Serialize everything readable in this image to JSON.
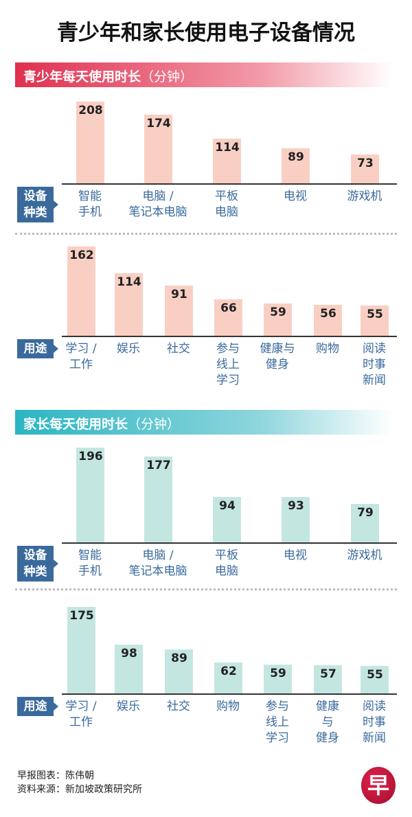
{
  "title": "青少年和家长使用电子设备情况",
  "colors": {
    "teen_header": "#e03050",
    "teen_bar": "#f9cfc4",
    "parent_header": "#2bb5c3",
    "parent_bar": "#c4e6e1",
    "tag": "#3a6a9c"
  },
  "sections": [
    {
      "header": "青少年每天使用时长",
      "unit": "（分钟）"
    },
    {
      "header": "家长每天使用时长",
      "unit": "（分钟）"
    }
  ],
  "tags": {
    "device": [
      "设备",
      "种类"
    ],
    "usage": [
      "用途"
    ]
  },
  "chart_data": [
    {
      "type": "bar",
      "title": "青少年每天使用时长（分钟）— 设备种类",
      "categories": [
        [
          "智能",
          "手机"
        ],
        [
          "电脑 /",
          "笔记本电脑"
        ],
        [
          "平板",
          "电脑"
        ],
        [
          "电视"
        ],
        [
          "游戏机"
        ]
      ],
      "values": [
        208,
        174,
        114,
        89,
        73
      ]
    },
    {
      "type": "bar",
      "title": "青少年每天使用时长（分钟）— 用途",
      "categories": [
        [
          "学习 /",
          "工作"
        ],
        [
          "娱乐"
        ],
        [
          "社交"
        ],
        [
          "参与",
          "线上",
          "学习"
        ],
        [
          "健康与",
          "健身"
        ],
        [
          "购物"
        ],
        [
          "阅读",
          "时事",
          "新闻"
        ]
      ],
      "values": [
        162,
        114,
        91,
        66,
        59,
        56,
        55
      ]
    },
    {
      "type": "bar",
      "title": "家长每天使用时长（分钟）— 设备种类",
      "categories": [
        [
          "智能",
          "手机"
        ],
        [
          "电脑 /",
          "笔记本电脑"
        ],
        [
          "平板",
          "电脑"
        ],
        [
          "电视"
        ],
        [
          "游戏机"
        ]
      ],
      "values": [
        196,
        177,
        94,
        93,
        79
      ]
    },
    {
      "type": "bar",
      "title": "家长每天使用时长（分钟）— 用途",
      "categories": [
        [
          "学习 /",
          "工作"
        ],
        [
          "娱乐"
        ],
        [
          "社交"
        ],
        [
          "购物"
        ],
        [
          "参与",
          "线上",
          "学习"
        ],
        [
          "健康",
          "与",
          "健身"
        ],
        [
          "阅读",
          "时事",
          "新闻"
        ]
      ],
      "values": [
        175,
        98,
        89,
        62,
        59,
        57,
        55
      ]
    }
  ],
  "credits": [
    "早报图表：陈伟朝",
    "资料来源：新加坡政策研究所"
  ],
  "logo": "早"
}
